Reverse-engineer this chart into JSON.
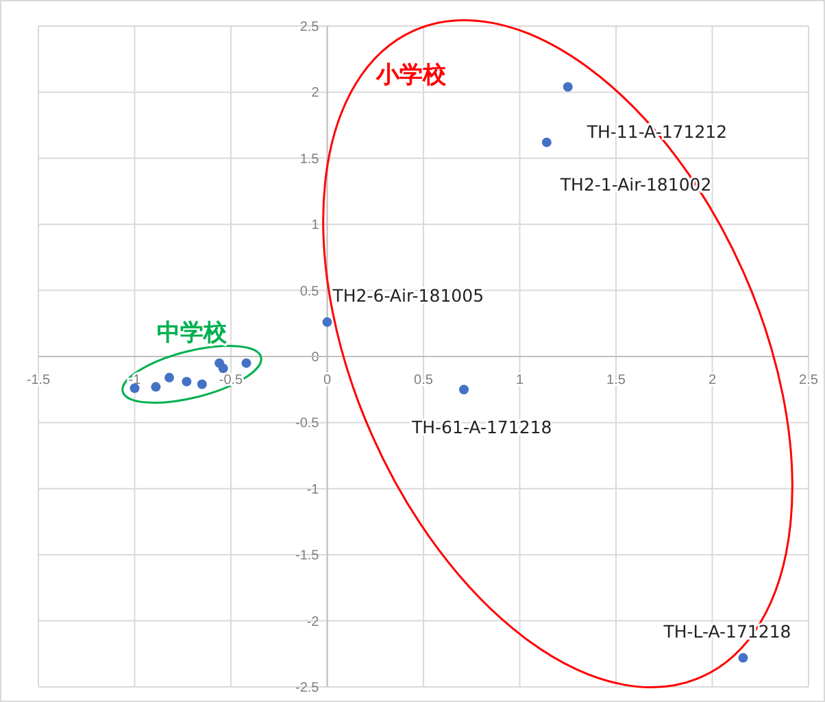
{
  "chart_data": {
    "type": "scatter",
    "x": [
      -1.0,
      -0.89,
      -0.82,
      -0.73,
      -0.65,
      -0.56,
      -0.54,
      -0.42,
      0.0,
      0.71,
      1.14,
      1.25,
      2.16
    ],
    "series": [
      {
        "color": "#4472c4",
        "values": [
          -0.24,
          -0.23,
          -0.16,
          -0.19,
          -0.21,
          -0.05,
          -0.09,
          -0.05,
          0.26,
          -0.25,
          1.62,
          2.04,
          -2.28
        ]
      }
    ],
    "xlim": [
      -1.5,
      2.5
    ],
    "ylim": [
      -2.5,
      2.5
    ],
    "xticks": [
      -1.5,
      -1,
      -0.5,
      0,
      0.5,
      1,
      1.5,
      2,
      2.5
    ],
    "yticks": [
      -2.5,
      -2,
      -1.5,
      -1,
      -0.5,
      0,
      0.5,
      1,
      1.5,
      2,
      2.5
    ],
    "grid": true,
    "marker": "circle",
    "annotations": [
      {
        "text": "TH-11-A-171212",
        "x": 1.25,
        "y": 2.04
      },
      {
        "text": "TH2-1-Air-181002",
        "x": 1.14,
        "y": 1.62
      },
      {
        "text": "TH2-6-Air-181005",
        "x": 0.0,
        "y": 0.26
      },
      {
        "text": "TH-61-A-171218",
        "x": 0.71,
        "y": -0.25
      },
      {
        "text": "TH-L-A-171218",
        "x": 2.16,
        "y": -2.28
      },
      "小学校",
      "中学校"
    ]
  }
}
